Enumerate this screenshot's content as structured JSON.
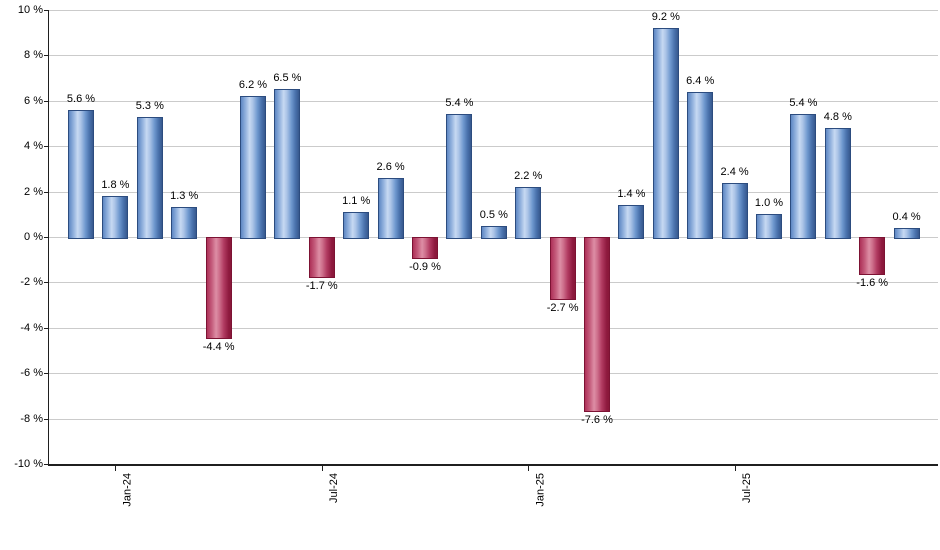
{
  "chart_data": {
    "type": "bar",
    "title": "",
    "xlabel": "",
    "ylabel": "",
    "values": [
      5.6,
      1.8,
      5.3,
      1.3,
      -4.4,
      6.2,
      6.5,
      -1.7,
      1.1,
      2.6,
      -0.9,
      5.4,
      0.5,
      2.2,
      -2.7,
      -7.6,
      1.4,
      9.2,
      6.4,
      2.4,
      1.0,
      5.4,
      4.8,
      -1.6,
      0.4
    ],
    "bar_labels": [
      "5.6 %",
      "1.8 %",
      "5.3 %",
      "1.3 %",
      "-4.4 %",
      "6.2 %",
      "6.5 %",
      "-1.7 %",
      "1.1 %",
      "2.6 %",
      "-0.9 %",
      "5.4 %",
      "0.5 %",
      "2.2 %",
      "-2.7 %",
      "-7.6 %",
      "1.4 %",
      "9.2 %",
      "6.4 %",
      "2.4 %",
      "1.0 %",
      "5.4 %",
      "4.8 %",
      "-1.6 %",
      "0.4 %"
    ],
    "x_ticks": [
      {
        "index": 1,
        "label": "Jan-24"
      },
      {
        "index": 7,
        "label": "Jul-24"
      },
      {
        "index": 13,
        "label": "Jan-25"
      },
      {
        "index": 19,
        "label": "Jul-25"
      }
    ],
    "y_axis": {
      "min": -10,
      "max": 10,
      "step": 2,
      "tick_labels": [
        "10 %",
        "8 %",
        "6 %",
        "4 %",
        "2 %",
        "0 %",
        "-2 %",
        "-4 %",
        "-6 %",
        "-8 %",
        "-10 %"
      ]
    },
    "grid": true,
    "legend": "none",
    "positive_color": "#6f97cd",
    "negative_color": "#c04a6d",
    "gridline_color": "#cbcbcb",
    "axis_color": "#1f1f1f",
    "label_color": "#000000"
  }
}
